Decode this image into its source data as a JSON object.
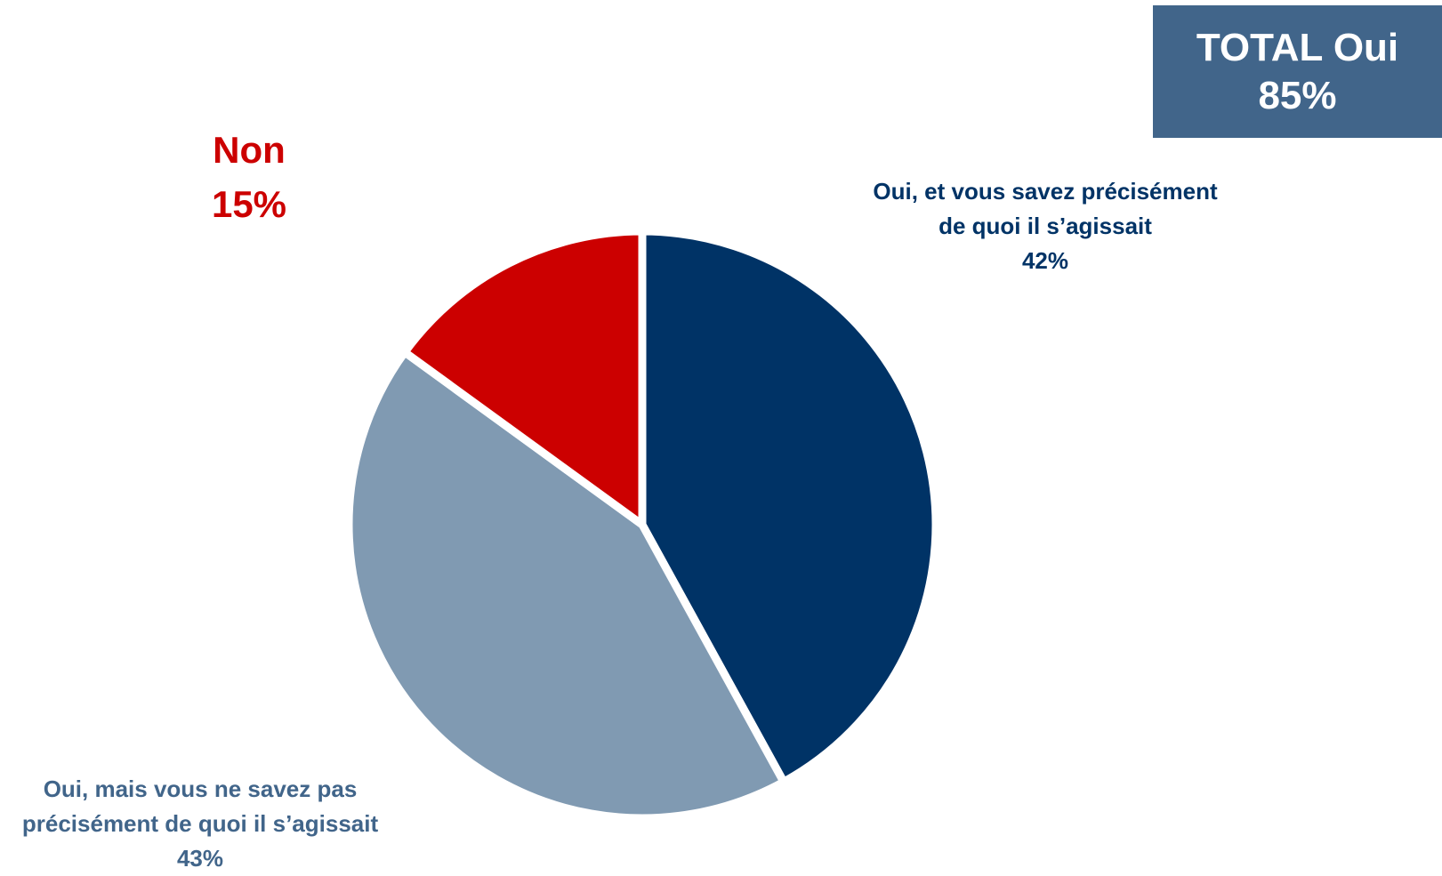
{
  "total_box": {
    "line1": "TOTAL Oui",
    "line2": "85%"
  },
  "chart_data": {
    "type": "pie",
    "title": "",
    "slices": [
      {
        "label_lines": [
          "Oui, et vous savez précisément",
          "de quoi il s’agissait"
        ],
        "value_label": "42%",
        "value": 42,
        "color": "#003366"
      },
      {
        "label_lines": [
          "Oui, mais vous ne savez pas",
          "précisément de quoi il s’agissait"
        ],
        "value_label": "43%",
        "value": 43,
        "color": "#809ab2"
      },
      {
        "label_lines": [
          "Non"
        ],
        "value_label": "15%",
        "value": 15,
        "color": "#cc0000"
      }
    ]
  }
}
